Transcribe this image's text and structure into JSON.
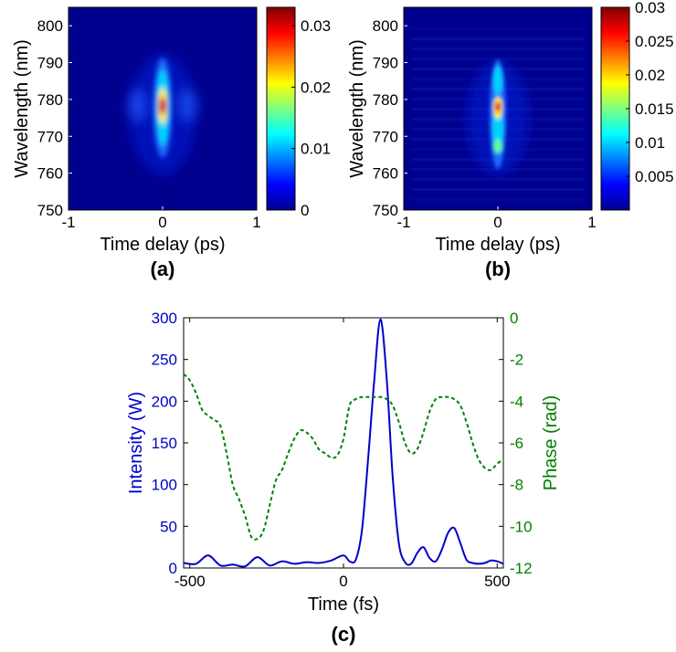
{
  "chart_data": [
    {
      "panel_label": "(a)",
      "type": "heatmap",
      "xlabel": "Time delay (ps)",
      "ylabel": "Wavelength (nm)",
      "xlim": [
        -1,
        1
      ],
      "ylim": [
        750,
        805
      ],
      "xticks": [
        "-1",
        "0",
        "1"
      ],
      "yticks": [
        "750",
        "760",
        "770",
        "780",
        "790",
        "800"
      ],
      "colorbar": {
        "range": [
          0,
          0.033
        ],
        "ticks": [
          "0",
          "0.01",
          "0.02",
          "0.03"
        ],
        "colormap": "jet"
      },
      "peak": {
        "x": 0,
        "y": 778,
        "value": 0.033
      }
    },
    {
      "panel_label": "(b)",
      "type": "heatmap",
      "xlabel": "Time delay (ps)",
      "ylabel": "Wavelength (nm)",
      "xlim": [
        -1,
        1
      ],
      "ylim": [
        750,
        805
      ],
      "xticks": [
        "-1",
        "0",
        "1"
      ],
      "yticks": [
        "750",
        "760",
        "770",
        "780",
        "790",
        "800"
      ],
      "colorbar": {
        "range": [
          0,
          0.03
        ],
        "ticks": [
          "0.005",
          "0.01",
          "0.015",
          "0.02",
          "0.025",
          "0.03"
        ],
        "colormap": "jet"
      },
      "peak": {
        "x": 0,
        "y": 778,
        "value": 0.03
      }
    },
    {
      "panel_label": "(c)",
      "type": "line",
      "xlabel": "Time (fs)",
      "ylabel": "Intensity (W)",
      "y2label": "Phase (rad)",
      "xlim": [
        -520,
        520
      ],
      "ylim": [
        0,
        300
      ],
      "y2lim": [
        -12,
        0
      ],
      "xticks": [
        "-500",
        "0",
        "500"
      ],
      "yticks": [
        "0",
        "50",
        "100",
        "150",
        "200",
        "250",
        "300"
      ],
      "y2ticks": [
        "0",
        "-2",
        "-4",
        "-6",
        "-8",
        "-10",
        "-12"
      ],
      "colors": {
        "intensity": "#0000cc",
        "phase": "#008000"
      },
      "series": [
        {
          "axis": "left",
          "style": "solid",
          "x": [
            -520,
            -480,
            -440,
            -400,
            -360,
            -320,
            -280,
            -240,
            -200,
            -160,
            -120,
            -80,
            -40,
            0,
            20,
            40,
            60,
            80,
            100,
            120,
            140,
            160,
            180,
            200,
            220,
            240,
            260,
            280,
            300,
            320,
            340,
            360,
            380,
            400,
            420,
            440,
            460,
            480,
            500,
            520
          ],
          "values": [
            6,
            5,
            15,
            3,
            4,
            2,
            13,
            3,
            8,
            5,
            7,
            6,
            9,
            15,
            8,
            10,
            45,
            130,
            225,
            298,
            230,
            110,
            30,
            7,
            5,
            18,
            25,
            12,
            8,
            22,
            42,
            48,
            30,
            10,
            6,
            5,
            6,
            9,
            8,
            5
          ]
        },
        {
          "axis": "right",
          "style": "dashed",
          "x": [
            -520,
            -500,
            -480,
            -460,
            -440,
            -420,
            -400,
            -380,
            -360,
            -340,
            -320,
            -300,
            -280,
            -260,
            -240,
            -220,
            -200,
            -180,
            -160,
            -140,
            -120,
            -100,
            -80,
            -60,
            -40,
            -20,
            0,
            20,
            40,
            60,
            80,
            100,
            120,
            140,
            160,
            180,
            200,
            220,
            240,
            260,
            280,
            300,
            320,
            340,
            360,
            380,
            400,
            420,
            440,
            460,
            480,
            500,
            520
          ],
          "values": [
            -2.7,
            -3.0,
            -3.6,
            -4.4,
            -4.7,
            -4.9,
            -5.2,
            -6.5,
            -8.0,
            -8.7,
            -9.5,
            -10.5,
            -10.6,
            -10.2,
            -9.0,
            -7.8,
            -7.3,
            -6.5,
            -5.8,
            -5.4,
            -5.5,
            -5.8,
            -6.3,
            -6.5,
            -6.7,
            -6.6,
            -5.8,
            -4.2,
            -3.9,
            -3.8,
            -3.8,
            -3.8,
            -3.8,
            -3.9,
            -4.2,
            -5.0,
            -6.0,
            -6.5,
            -6.3,
            -5.5,
            -4.5,
            -3.9,
            -3.8,
            -3.8,
            -3.9,
            -4.2,
            -5.0,
            -6.0,
            -6.8,
            -7.2,
            -7.3,
            -7.0,
            -6.8
          ]
        }
      ]
    }
  ]
}
